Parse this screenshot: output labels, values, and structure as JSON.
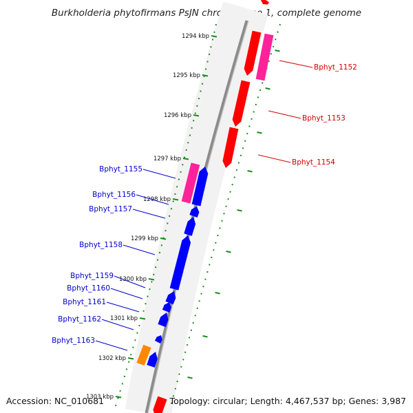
{
  "title": "Burkholderia phytofirmans PsJN chromosome 1, complete genome",
  "footer": {
    "accession": "Accession: NC_010681",
    "summary": "Topology: circular; Length: 4,467,537 bp; Genes: 3,987"
  },
  "colors": {
    "backbone": "#8c8c8c",
    "ticks": "#1a8c1a",
    "forward_gene": "#ff0000",
    "reverse_gene": "#0000ff",
    "pseudo_gene": "#ff2299",
    "other_gene": "#ff8800",
    "forward_label": "#cc0000",
    "reverse_label": "#0000cc"
  },
  "ticks": [
    "1294 kbp",
    "1295 kbp",
    "1296 kbp",
    "1297 kbp",
    "1298 kbp",
    "1299 kbp",
    "1300 kbp",
    "1301 kbp",
    "1302 kbp",
    "1303 kbp"
  ],
  "genes": [
    {
      "label": "Bphyt_1152",
      "strand": "forward"
    },
    {
      "label": "Bphyt_1153",
      "strand": "forward"
    },
    {
      "label": "Bphyt_1154",
      "strand": "forward"
    },
    {
      "label": "Bphyt_1155",
      "strand": "reverse"
    },
    {
      "label": "Bphyt_1156",
      "strand": "reverse"
    },
    {
      "label": "Bphyt_1157",
      "strand": "reverse"
    },
    {
      "label": "Bphyt_1158",
      "strand": "reverse"
    },
    {
      "label": "Bphyt_1159",
      "strand": "reverse"
    },
    {
      "label": "Bphyt_1160",
      "strand": "reverse"
    },
    {
      "label": "Bphyt_1161",
      "strand": "reverse"
    },
    {
      "label": "Bphyt_1162",
      "strand": "reverse"
    },
    {
      "label": "Bphyt_1163",
      "strand": "reverse"
    }
  ]
}
